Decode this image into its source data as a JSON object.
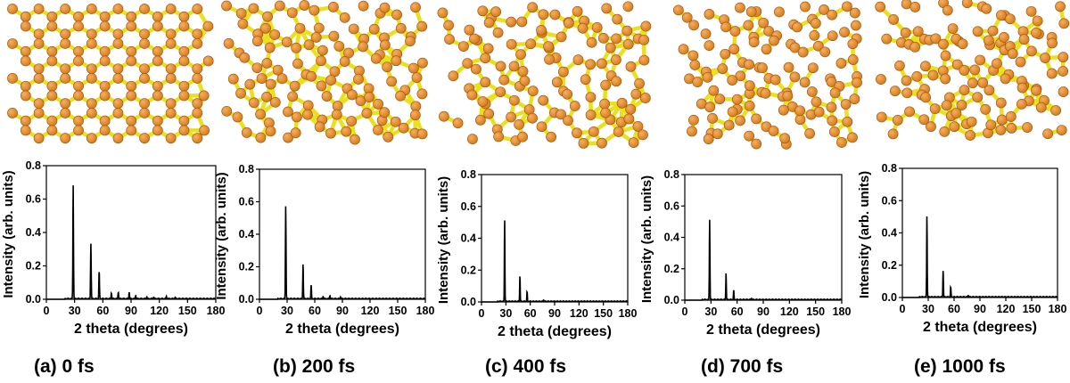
{
  "chart_data": [
    {
      "type": "line",
      "caption": "(a) 0 fs",
      "xlabel": "2 theta (degrees)",
      "ylabel": "Intensity (arb. units)",
      "xlim": [
        0,
        180
      ],
      "ylim": [
        0,
        0.8
      ],
      "xticks": [
        "0",
        "30",
        "60",
        "90",
        "120",
        "150",
        "180"
      ],
      "yticks": [
        "0.0",
        "0.2",
        "0.4",
        "0.6",
        "0.8"
      ],
      "peaks": [
        [
          28.5,
          0.68
        ],
        [
          47.3,
          0.335
        ],
        [
          56.1,
          0.165
        ],
        [
          69.1,
          0.035
        ],
        [
          76.4,
          0.04
        ],
        [
          88.0,
          0.04
        ],
        [
          94.9,
          0.02
        ],
        [
          106.7,
          0.012
        ],
        [
          114.1,
          0.01
        ],
        [
          127.5,
          0.014
        ],
        [
          136.9,
          0.008
        ]
      ],
      "line_color": "#000000"
    },
    {
      "type": "line",
      "caption": "(b) 200 fs",
      "xlabel": "2 theta (degrees)",
      "ylabel": "Intensity (arb. units)",
      "xlim": [
        0,
        180
      ],
      "ylim": [
        0,
        0.8
      ],
      "xticks": [
        "0",
        "30",
        "60",
        "90",
        "120",
        "150",
        "180"
      ],
      "yticks": [
        "0.0",
        "0.2",
        "0.4",
        "0.6",
        "0.8"
      ],
      "peaks": [
        [
          28.5,
          0.57
        ],
        [
          47.3,
          0.215
        ],
        [
          56.1,
          0.085
        ],
        [
          69.1,
          0.015
        ],
        [
          76.4,
          0.02
        ],
        [
          88.0,
          0.012
        ]
      ],
      "line_color": "#000000"
    },
    {
      "type": "line",
      "caption": "(c) 400 fs",
      "xlabel": "2 theta (degrees)",
      "ylabel": "Intensity (arb. units)",
      "xlim": [
        0,
        180
      ],
      "ylim": [
        0,
        0.8
      ],
      "xticks": [
        "0",
        "30",
        "60",
        "90",
        "120",
        "150",
        "180"
      ],
      "yticks": [
        "0.0",
        "0.2",
        "0.4",
        "0.6",
        "0.8"
      ],
      "peaks": [
        [
          28.5,
          0.51
        ],
        [
          47.3,
          0.16
        ],
        [
          56.1,
          0.06
        ],
        [
          76.4,
          0.01
        ]
      ],
      "line_color": "#000000"
    },
    {
      "type": "line",
      "caption": "(d) 700 fs",
      "xlabel": "2 theta (degrees)",
      "ylabel": "Intensity (arb. units)",
      "xlim": [
        0,
        180
      ],
      "ylim": [
        0,
        0.8
      ],
      "xticks": [
        "0",
        "30",
        "60",
        "90",
        "120",
        "150",
        "180"
      ],
      "yticks": [
        "0.0",
        "0.2",
        "0.4",
        "0.6",
        "0.8"
      ],
      "peaks": [
        [
          28.5,
          0.51
        ],
        [
          47.3,
          0.17
        ],
        [
          56.1,
          0.06
        ],
        [
          76.4,
          0.01
        ]
      ],
      "line_color": "#000000"
    },
    {
      "type": "line",
      "caption": "(e) 1000 fs",
      "xlabel": "2 theta (degrees)",
      "ylabel": "Intensity (arb. units)",
      "xlim": [
        0,
        180
      ],
      "ylim": [
        0,
        0.8
      ],
      "xticks": [
        "0",
        "30",
        "60",
        "90",
        "120",
        "150",
        "180"
      ],
      "yticks": [
        "0.0",
        "0.2",
        "0.4",
        "0.6",
        "0.8"
      ],
      "peaks": [
        [
          28.5,
          0.5
        ],
        [
          47.3,
          0.165
        ],
        [
          56.1,
          0.06
        ],
        [
          76.4,
          0.01
        ]
      ],
      "line_color": "#000000"
    }
  ],
  "structure_images": {
    "atom_color": "#d4781a",
    "atom_highlight": "#f5b060",
    "bond_color": "#e8e020"
  }
}
